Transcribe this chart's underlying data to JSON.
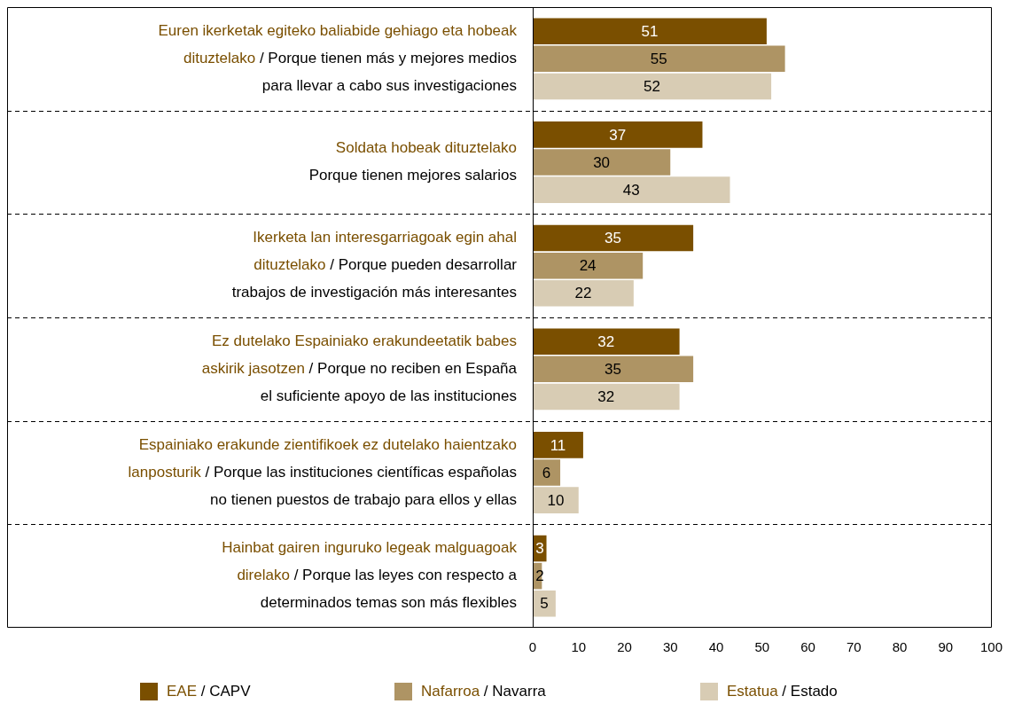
{
  "chart_data": {
    "type": "bar",
    "orientation": "horizontal",
    "categories": [
      "Euren ikerketak egiteko baliabide gehiago eta hobeak\ndituztelako / Porque tienen más y mejores medios\npara llevar a cabo sus investigaciones",
      "Soldata hobeak dituztelako\nPorque tienen mejores salarios",
      "Ikerketa lan interesgarriagoak egin ahal\ndituztelako / Porque pueden desarrollar\ntrabajos de investigación más interesantes",
      "Ez dutelako Espainiako erakundeetatik babes\naskirik jasotzen / Porque no reciben en España\nel suficiente apoyo de las instituciones",
      "Espainiako erakunde zientifikoek ez dutelako haientzako\nlanposturik / Porque las instituciones científicas españolas\nno tienen puestos de trabajo para ellos y ellas",
      "Hainbat gairen inguruko legeak malguagoak\ndirelako / Porque las leyes con respecto a\ndeterminados temas son más flexibles"
    ],
    "series": [
      {
        "name": "EAE / CAPV",
        "color": "#7a4f00",
        "values": [
          51,
          37,
          35,
          32,
          11,
          3
        ]
      },
      {
        "name": "Nafarroa / Navarra",
        "color": "#ae9464",
        "values": [
          55,
          30,
          24,
          35,
          6,
          2
        ]
      },
      {
        "name": "Estatua / Estado",
        "color": "#d8ccb4",
        "values": [
          52,
          43,
          22,
          32,
          10,
          5
        ]
      }
    ],
    "xlim": [
      0,
      100
    ],
    "xticks": [
      0,
      10,
      20,
      30,
      40,
      50,
      60,
      70,
      80,
      90,
      100
    ],
    "data_labels": true,
    "legend": "bottom",
    "grid": false
  }
}
